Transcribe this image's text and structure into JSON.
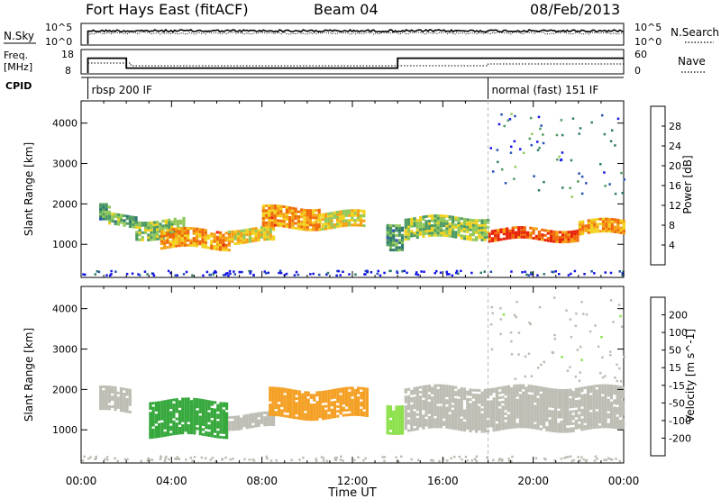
{
  "header": {
    "station": "Fort Hays East (fitACF)",
    "beam": "Beam 04",
    "date": "08/Feb/2013"
  },
  "noise_panel": {
    "left_label": "N.Sky",
    "right_label": "N.Search",
    "left_ticks": [
      "10^5",
      "10^0"
    ],
    "right_ticks": [
      "10^5",
      "10^0"
    ]
  },
  "freq_panel": {
    "left_label_1": "Freq.",
    "left_label_2": "[MHz]",
    "right_label": "Nave",
    "left_ticks": [
      "18",
      "8"
    ],
    "right_ticks": [
      "60",
      "0"
    ],
    "freq_steps": [
      {
        "t_start": 0.3,
        "t_end": 2.0,
        "freq_mhz": 15
      },
      {
        "t_start": 2.0,
        "t_end": 14.0,
        "freq_mhz": 10
      },
      {
        "t_start": 14.0,
        "t_end": 24.0,
        "freq_mhz": 15
      }
    ]
  },
  "cpid_panel": {
    "label": "CPID",
    "modes": [
      {
        "t_start": 0.3,
        "name": "rbsp 200 IF"
      },
      {
        "t_start": 18.0,
        "name": "normal (fast) 151 IF"
      }
    ]
  },
  "x_axis": {
    "title": "Time UT",
    "tick_labels": [
      "00:00",
      "04:00",
      "08:00",
      "12:00",
      "16:00",
      "20:00",
      "00:00"
    ]
  },
  "colors": {
    "power_scale": [
      "#1414e6",
      "#2450b4",
      "#2e7a6e",
      "#4f9a62",
      "#90c85a",
      "#f2d21e",
      "#f5a214",
      "#f06a0a",
      "#e8240a"
    ],
    "velocity_scale": [
      "#e00000",
      "#f05010",
      "#f4a024",
      "#f6c82c",
      "#bdbdb4",
      "#8ce04a",
      "#36a83c",
      "#2030c8",
      "#1010b0"
    ],
    "ground_scatter": "#bdbdb4"
  },
  "chart_data": [
    {
      "type": "heatmap",
      "name": "Power",
      "ylabel": "Slant Range [km]",
      "xlabel": "Time UT",
      "xlim": [
        0,
        24
      ],
      "ylim": [
        180,
        4550
      ],
      "yticks": [
        1000,
        2000,
        3000,
        4000
      ],
      "colorbar": {
        "label": "Power [dB]",
        "ticks": [
          28,
          24,
          20,
          16,
          12,
          8,
          4
        ],
        "range": [
          0,
          32
        ]
      },
      "bands": [
        {
          "t": [
            0.8,
            1.2
          ],
          "range": [
            1600,
            2000
          ],
          "value": 12
        },
        {
          "t": [
            1.2,
            2.4
          ],
          "range": [
            1500,
            1800
          ],
          "value": 14
        },
        {
          "t": [
            2.4,
            4.5
          ],
          "range": [
            1200,
            1650
          ],
          "value": 16
        },
        {
          "t": [
            3.5,
            6.5
          ],
          "range": [
            950,
            1400
          ],
          "value": 24
        },
        {
          "t": [
            6.5,
            8.5
          ],
          "range": [
            1100,
            1450
          ],
          "value": 20
        },
        {
          "t": [
            8.0,
            10.5
          ],
          "range": [
            1450,
            1950
          ],
          "value": 24
        },
        {
          "t": [
            10.5,
            12.5
          ],
          "range": [
            1450,
            1850
          ],
          "value": 20
        },
        {
          "t": [
            13.5,
            14.2
          ],
          "range": [
            950,
            1600
          ],
          "value": 12
        },
        {
          "t": [
            14.3,
            18.0
          ],
          "range": [
            1200,
            1700
          ],
          "value": 16
        },
        {
          "t": [
            18.0,
            22.0
          ],
          "range": [
            1150,
            1450
          ],
          "value": 28
        },
        {
          "t": [
            22.0,
            24.0
          ],
          "range": [
            1300,
            1650
          ],
          "value": 24
        }
      ]
    },
    {
      "type": "heatmap",
      "name": "Velocity",
      "ylabel": "Slant Range [km]",
      "xlabel": "Time UT",
      "xlim": [
        0,
        24
      ],
      "ylim": [
        180,
        4550
      ],
      "yticks": [
        1000,
        2000,
        3000,
        4000
      ],
      "colorbar": {
        "label": "Velocity [m s^-1]",
        "ticks": [
          200,
          100,
          50,
          15,
          -15,
          -50,
          -100,
          -200
        ],
        "range": [
          -250,
          250
        ]
      },
      "bands": [
        {
          "t": [
            0.8,
            2.2
          ],
          "range": [
            1500,
            2100
          ],
          "value": 0
        },
        {
          "t": [
            3.0,
            6.5
          ],
          "range": [
            900,
            1800
          ],
          "value": 60
        },
        {
          "t": [
            6.5,
            8.5
          ],
          "range": [
            1100,
            1450
          ],
          "value": 0
        },
        {
          "t": [
            8.3,
            12.6
          ],
          "range": [
            1350,
            2050
          ],
          "value": -80
        },
        {
          "t": [
            13.5,
            14.2
          ],
          "range": [
            1000,
            1700
          ],
          "value": 40
        },
        {
          "t": [
            14.3,
            24.0
          ],
          "range": [
            1050,
            2100
          ],
          "value": 0
        }
      ]
    }
  ]
}
